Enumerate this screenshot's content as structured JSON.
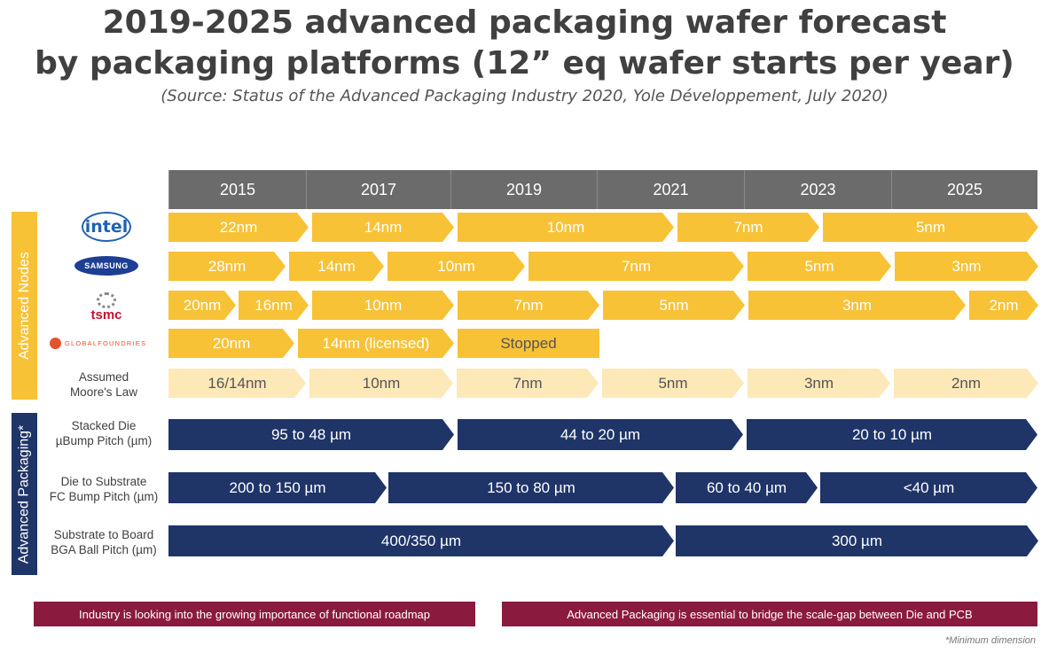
{
  "title_line1": "2019-2025 advanced packaging wafer forecast",
  "title_line2": "by packaging platforms (12” eq wafer starts per year)",
  "subtitle": "(Source: Status of the Advanced Packaging Industry 2020, Yole Développement, July 2020)",
  "years": [
    "2015",
    "2017",
    "2019",
    "2021",
    "2023",
    "2025"
  ],
  "side_labels": {
    "nodes": "Advanced Nodes",
    "packaging": "Advanced Packaging*"
  },
  "logos": {
    "intel": "intel",
    "samsung": "SAMSUNG",
    "tsmc": "tsmc",
    "globalfoundries": "GLOBALFOUNDRIES"
  },
  "row_labels": {
    "moore": [
      "Assumed",
      "Moore's Law"
    ],
    "stacked": [
      "Stacked Die",
      "µBump Pitch (µm)"
    ],
    "fc": [
      "Die to Substrate",
      "FC Bump Pitch (µm)"
    ],
    "bga": [
      "Substrate to Board",
      "BGA Ball Pitch (µm)"
    ]
  },
  "rows": {
    "intel": [
      "22nm",
      "14nm",
      "10nm",
      "7nm",
      "5nm"
    ],
    "samsung": [
      "28nm",
      "14nm",
      "10nm",
      "7nm",
      "5nm",
      "3nm"
    ],
    "tsmc": [
      "20nm",
      "16nm",
      "10nm",
      "7nm",
      "5nm",
      "3nm",
      "2nm"
    ],
    "globalfoundries": [
      "20nm",
      "14nm (licensed)",
      "Stopped"
    ],
    "moore": [
      "16/14nm",
      "10nm",
      "7nm",
      "5nm",
      "3nm",
      "2nm"
    ],
    "stacked": [
      "95 to 48 µm",
      "44 to 20 µm",
      "20 to 10 µm"
    ],
    "fc": [
      "200 to 150 µm",
      "150 to 80 µm",
      "60 to 40 µm",
      "<40 µm"
    ],
    "bga": [
      "400/350 µm",
      "300 µm"
    ]
  },
  "notes": {
    "left": "Industry is looking into the growing importance of functional roadmap",
    "right": "Advanced Packaging is essential to bridge the scale-gap between Die and PCB",
    "footnote": "*Minimum dimension"
  },
  "colors": {
    "gold": "#f8c237",
    "light_gold": "#fde8b8",
    "navy": "#1f3568",
    "header_gray": "#6b6b6b",
    "note_red": "#8b1a3f"
  }
}
